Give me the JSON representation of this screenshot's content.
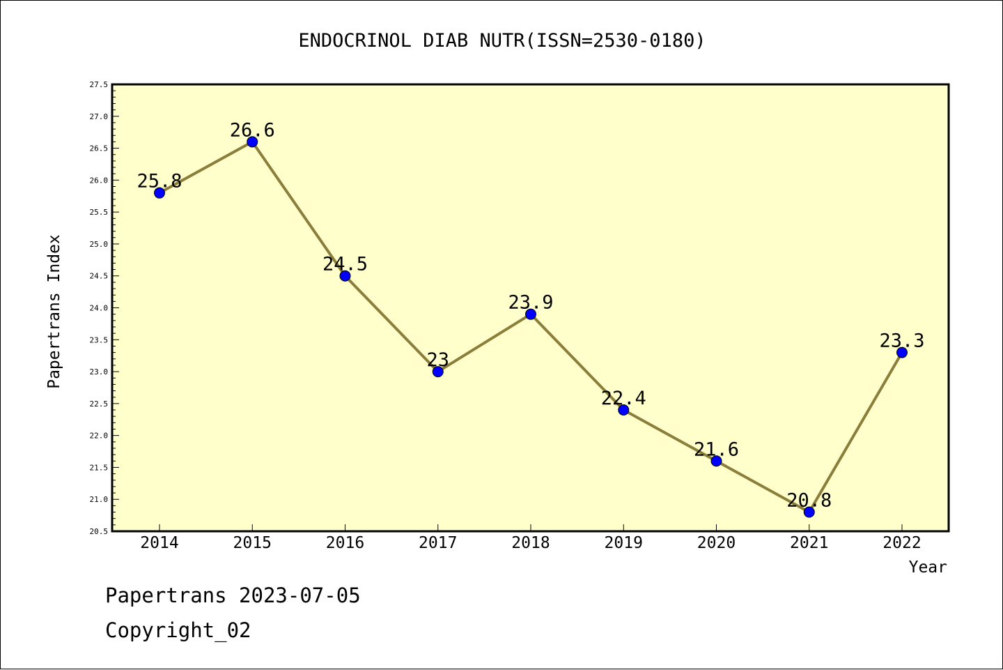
{
  "chart_data": {
    "type": "line",
    "title": "ENDOCRINOL DIAB NUTR(ISSN=2530-0180)",
    "xlabel": "Year",
    "ylabel": "Papertrans Index",
    "categories": [
      "2014",
      "2015",
      "2016",
      "2017",
      "2018",
      "2019",
      "2020",
      "2021",
      "2022"
    ],
    "values": [
      25.8,
      26.6,
      24.5,
      23,
      23.9,
      22.4,
      21.6,
      20.8,
      23.3
    ],
    "value_labels": [
      "25.8",
      "26.6",
      "24.5",
      "23",
      "23.9",
      "22.4",
      "21.6",
      "20.8",
      "23.3"
    ],
    "ylim": [
      20.5,
      27.5
    ],
    "yticks": [
      "20.5",
      "21.0",
      "21.5",
      "22.0",
      "22.5",
      "23.0",
      "23.5",
      "24.0",
      "24.5",
      "25.0",
      "25.5",
      "26.0",
      "26.5",
      "27.0",
      "27.5"
    ],
    "grid": false,
    "legend": "none",
    "colors": {
      "plot_background": "#ffffcc",
      "line": "#8b7d3a",
      "marker": "#0000ff"
    }
  },
  "footer": {
    "line1": "Papertrans 2023-07-05",
    "line2": "Copyright_02"
  }
}
